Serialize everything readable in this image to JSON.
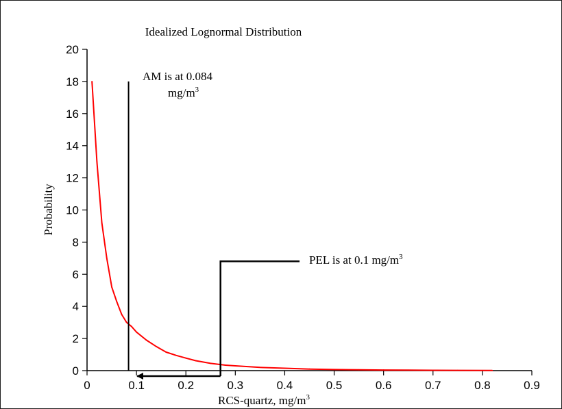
{
  "chart_data": {
    "type": "line",
    "title": "Idealized Lognormal Distribution",
    "xlabel": "RCS-quartz, mg/m",
    "xlabel_sup": "3",
    "ylabel": "Probability",
    "xlim": [
      0,
      0.9
    ],
    "ylim": [
      0,
      20
    ],
    "x_ticks": [
      "0",
      "0.1",
      "0.2",
      "0.3",
      "0.4",
      "0.5",
      "0.6",
      "0.7",
      "0.8",
      "0.9"
    ],
    "y_ticks": [
      "0",
      "2",
      "4",
      "6",
      "8",
      "10",
      "12",
      "14",
      "16",
      "18",
      "20"
    ],
    "grid": false,
    "legend": "none",
    "series": [
      {
        "color": "#ff0000",
        "x": [
          0.01,
          0.02,
          0.03,
          0.04,
          0.05,
          0.06,
          0.07,
          0.08,
          0.09,
          0.1,
          0.12,
          0.14,
          0.16,
          0.18,
          0.2,
          0.22,
          0.25,
          0.28,
          0.3,
          0.35,
          0.4,
          0.45,
          0.5,
          0.55,
          0.6,
          0.65,
          0.7,
          0.75,
          0.82
        ],
        "y": [
          18.0,
          13.0,
          9.2,
          7.0,
          5.2,
          4.3,
          3.5,
          3.0,
          2.75,
          2.4,
          1.9,
          1.5,
          1.15,
          0.95,
          0.78,
          0.62,
          0.45,
          0.34,
          0.3,
          0.2,
          0.15,
          0.1,
          0.07,
          0.05,
          0.04,
          0.03,
          0.02,
          0.015,
          0.01
        ]
      }
    ],
    "annotations": [
      {
        "id": "am",
        "line1": "AM is at 0.084",
        "line2": "mg/m",
        "sup": "3",
        "x": 0.084,
        "y_top": 18
      },
      {
        "id": "pel",
        "text": "PEL is at 0.1 mg/m",
        "sup": "3",
        "x_from": 0.27,
        "y_level": 6.8,
        "x_end": 0.43,
        "arrow_to_x": 0.1
      }
    ]
  }
}
